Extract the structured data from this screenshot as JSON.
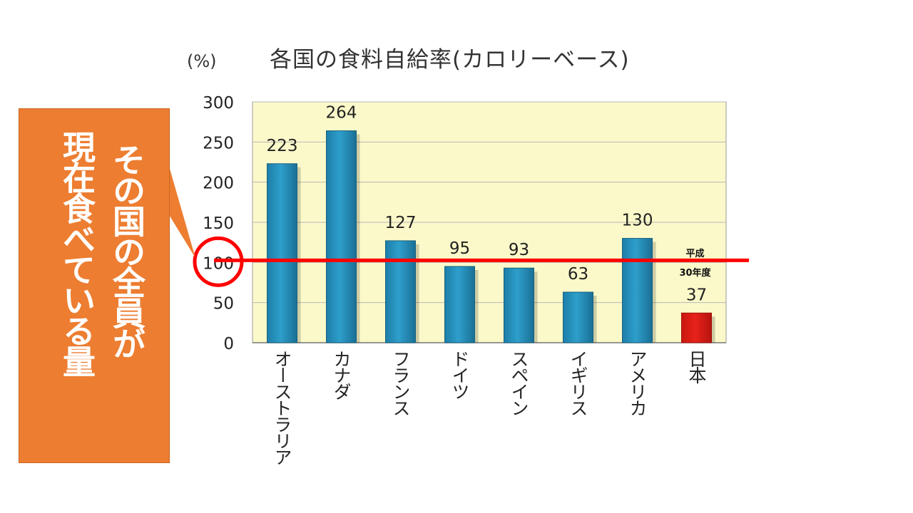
{
  "callout": {
    "line1": "その国の全員が",
    "line2": "現在食べている量"
  },
  "colors": {
    "plot_bg": "#fbf9c9",
    "bar": "#2e9fcb",
    "bar_japan": "#e8221b",
    "reference_line": "#ff0000",
    "callout_bg": "#ed7d31"
  },
  "chart_data": {
    "type": "bar",
    "title": "各国の食料自給率(カロリーベース)",
    "ylabel": "(%)",
    "xlabel": "",
    "ylim": [
      0,
      300
    ],
    "yticks": [
      0,
      50,
      100,
      150,
      200,
      250,
      300
    ],
    "grid": true,
    "categories": [
      "オーストラリア",
      "カナダ",
      "フランス",
      "ドイツ",
      "スペイン",
      "イギリス",
      "アメリカ",
      "日本"
    ],
    "values": [
      223,
      264,
      127,
      95,
      93,
      63,
      130,
      37
    ],
    "data_labels": [
      "223",
      "264",
      "127",
      "95",
      "93",
      "63",
      "130",
      "37"
    ],
    "japan_note": [
      "平成",
      "30年度"
    ],
    "reference_line": 100,
    "highlight_index": 7
  }
}
